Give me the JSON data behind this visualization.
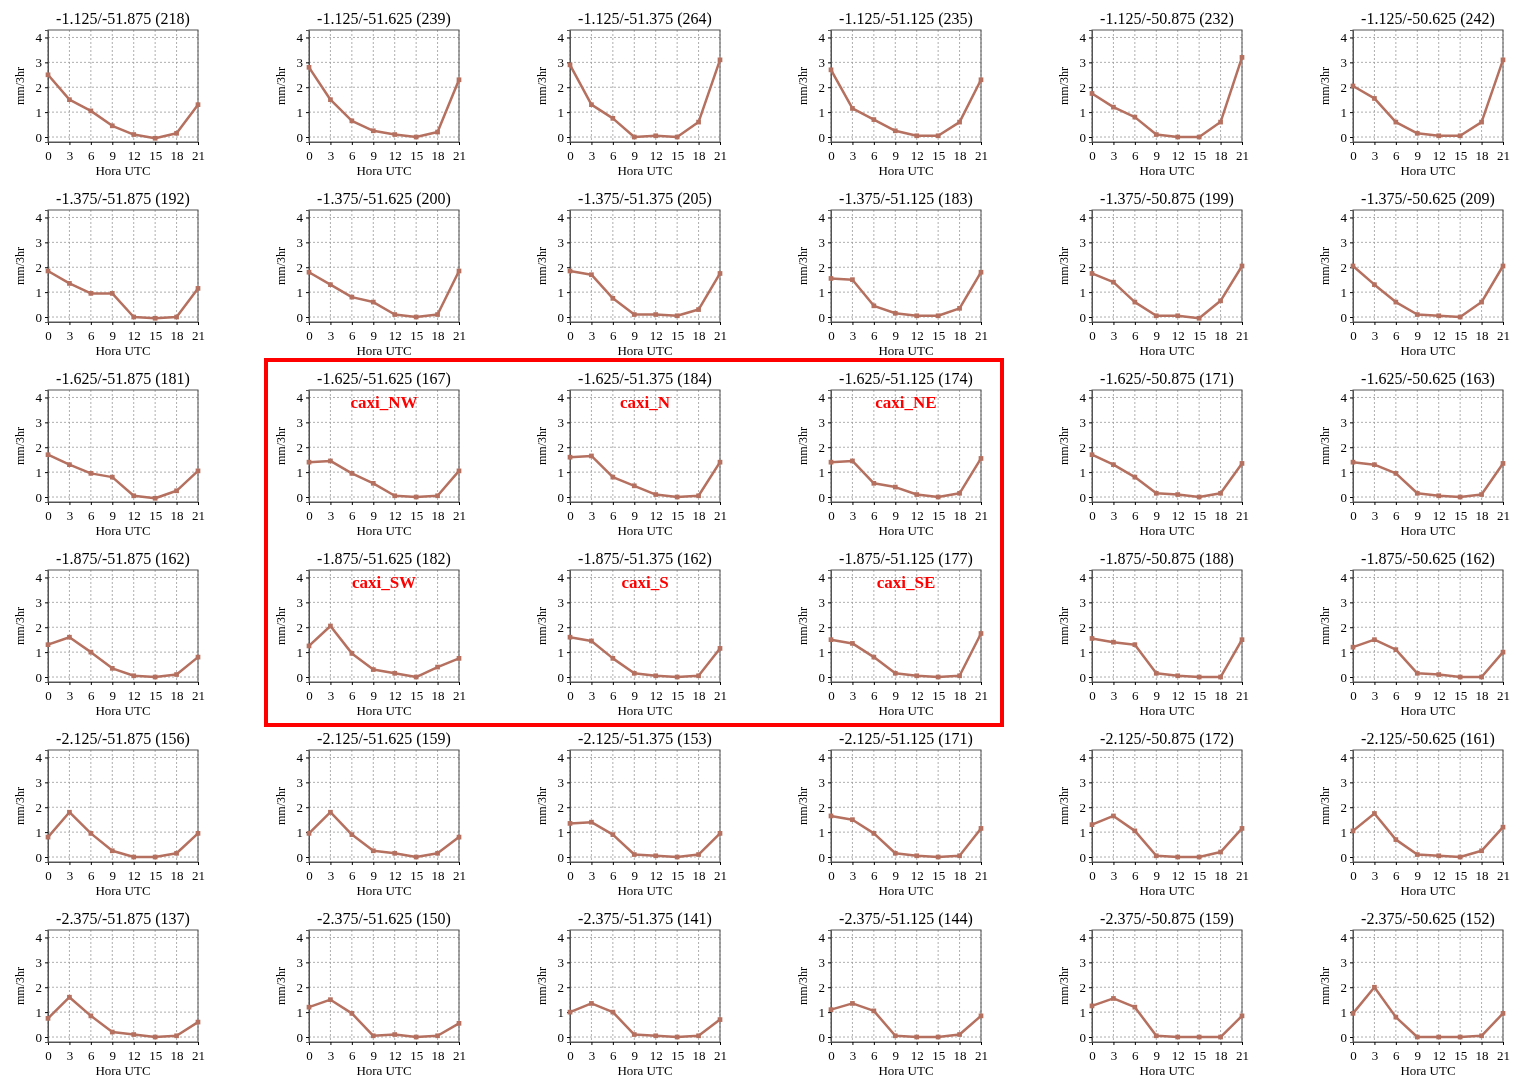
{
  "chart_data": [
    {
      "type": "line",
      "title": "-1.125/-51.875 (218)",
      "xlabel": "Hora UTC",
      "ylabel": "mm/3hr",
      "x": [
        0,
        3,
        6,
        9,
        12,
        15,
        18,
        21
      ],
      "series": [
        {
          "color": "#b5705f",
          "values": [
            2.5,
            1.5,
            1.05,
            0.45,
            0.1,
            -0.05,
            0.15,
            1.3
          ]
        }
      ],
      "xlim": [
        0,
        21
      ],
      "ylim": [
        -0.2,
        4.3
      ],
      "xticks": [
        0,
        3,
        6,
        9,
        12,
        15,
        18,
        21
      ],
      "yticks": [
        0,
        1,
        2,
        3,
        4
      ],
      "grid": true,
      "marker": "square"
    },
    {
      "type": "line",
      "title": "-1.125/-51.625 (239)",
      "xlabel": "Hora UTC",
      "ylabel": "mm/3hr",
      "x": [
        0,
        3,
        6,
        9,
        12,
        15,
        18,
        21
      ],
      "series": [
        {
          "color": "#b5705f",
          "values": [
            2.8,
            1.5,
            0.65,
            0.25,
            0.1,
            0.0,
            0.2,
            2.3
          ]
        }
      ],
      "xlim": [
        0,
        21
      ],
      "ylim": [
        -0.2,
        4.3
      ],
      "xticks": [
        0,
        3,
        6,
        9,
        12,
        15,
        18,
        21
      ],
      "yticks": [
        0,
        1,
        2,
        3,
        4
      ],
      "grid": true,
      "marker": "square"
    },
    {
      "type": "line",
      "title": "-1.125/-51.375 (264)",
      "xlabel": "Hora UTC",
      "ylabel": "mm/3hr",
      "x": [
        0,
        3,
        6,
        9,
        12,
        15,
        18,
        21
      ],
      "series": [
        {
          "color": "#b5705f",
          "values": [
            2.9,
            1.3,
            0.75,
            0.0,
            0.05,
            0.0,
            0.6,
            3.1
          ]
        }
      ],
      "xlim": [
        0,
        21
      ],
      "ylim": [
        -0.2,
        4.3
      ],
      "xticks": [
        0,
        3,
        6,
        9,
        12,
        15,
        18,
        21
      ],
      "yticks": [
        0,
        1,
        2,
        3,
        4
      ],
      "grid": true,
      "marker": "square"
    },
    {
      "type": "line",
      "title": "-1.125/-51.125 (235)",
      "xlabel": "Hora UTC",
      "ylabel": "mm/3hr",
      "x": [
        0,
        3,
        6,
        9,
        12,
        15,
        18,
        21
      ],
      "series": [
        {
          "color": "#b5705f",
          "values": [
            2.7,
            1.15,
            0.7,
            0.25,
            0.05,
            0.05,
            0.6,
            2.3
          ]
        }
      ],
      "xlim": [
        0,
        21
      ],
      "ylim": [
        -0.2,
        4.3
      ],
      "xticks": [
        0,
        3,
        6,
        9,
        12,
        15,
        18,
        21
      ],
      "yticks": [
        0,
        1,
        2,
        3,
        4
      ],
      "grid": true,
      "marker": "square"
    },
    {
      "type": "line",
      "title": "-1.125/-50.875 (232)",
      "xlabel": "Hora UTC",
      "ylabel": "mm/3hr",
      "x": [
        0,
        3,
        6,
        9,
        12,
        15,
        18,
        21
      ],
      "series": [
        {
          "color": "#b5705f",
          "values": [
            1.75,
            1.2,
            0.8,
            0.1,
            0.0,
            0.0,
            0.6,
            3.2
          ]
        }
      ],
      "xlim": [
        0,
        21
      ],
      "ylim": [
        -0.2,
        4.3
      ],
      "xticks": [
        0,
        3,
        6,
        9,
        12,
        15,
        18,
        21
      ],
      "yticks": [
        0,
        1,
        2,
        3,
        4
      ],
      "grid": true,
      "marker": "square"
    },
    {
      "type": "line",
      "title": "-1.125/-50.625 (242)",
      "xlabel": "Hora UTC",
      "ylabel": "mm/3hr",
      "x": [
        0,
        3,
        6,
        9,
        12,
        15,
        18,
        21
      ],
      "series": [
        {
          "color": "#b5705f",
          "values": [
            2.05,
            1.55,
            0.6,
            0.15,
            0.05,
            0.05,
            0.6,
            3.1
          ]
        }
      ],
      "xlim": [
        0,
        21
      ],
      "ylim": [
        -0.2,
        4.3
      ],
      "xticks": [
        0,
        3,
        6,
        9,
        12,
        15,
        18,
        21
      ],
      "yticks": [
        0,
        1,
        2,
        3,
        4
      ],
      "grid": true,
      "marker": "square"
    },
    {
      "type": "line",
      "title": "-1.375/-51.875 (192)",
      "xlabel": "Hora UTC",
      "ylabel": "mm/3hr",
      "x": [
        0,
        3,
        6,
        9,
        12,
        15,
        18,
        21
      ],
      "series": [
        {
          "color": "#b5705f",
          "values": [
            1.85,
            1.35,
            0.95,
            0.95,
            0.0,
            -0.05,
            0.0,
            1.15
          ]
        }
      ],
      "xlim": [
        0,
        21
      ],
      "ylim": [
        -0.2,
        4.3
      ],
      "xticks": [
        0,
        3,
        6,
        9,
        12,
        15,
        18,
        21
      ],
      "yticks": [
        0,
        1,
        2,
        3,
        4
      ],
      "grid": true,
      "marker": "square"
    },
    {
      "type": "line",
      "title": "-1.375/-51.625 (200)",
      "xlabel": "Hora UTC",
      "ylabel": "mm/3hr",
      "x": [
        0,
        3,
        6,
        9,
        12,
        15,
        18,
        21
      ],
      "series": [
        {
          "color": "#b5705f",
          "values": [
            1.8,
            1.3,
            0.8,
            0.6,
            0.1,
            0.0,
            0.1,
            1.85
          ]
        }
      ],
      "xlim": [
        0,
        21
      ],
      "ylim": [
        -0.2,
        4.3
      ],
      "xticks": [
        0,
        3,
        6,
        9,
        12,
        15,
        18,
        21
      ],
      "yticks": [
        0,
        1,
        2,
        3,
        4
      ],
      "grid": true,
      "marker": "square"
    },
    {
      "type": "line",
      "title": "-1.375/-51.375 (205)",
      "xlabel": "Hora UTC",
      "ylabel": "mm/3hr",
      "x": [
        0,
        3,
        6,
        9,
        12,
        15,
        18,
        21
      ],
      "series": [
        {
          "color": "#b5705f",
          "values": [
            1.85,
            1.7,
            0.75,
            0.1,
            0.1,
            0.05,
            0.3,
            1.75
          ]
        }
      ],
      "xlim": [
        0,
        21
      ],
      "ylim": [
        -0.2,
        4.3
      ],
      "xticks": [
        0,
        3,
        6,
        9,
        12,
        15,
        18,
        21
      ],
      "yticks": [
        0,
        1,
        2,
        3,
        4
      ],
      "grid": true,
      "marker": "square"
    },
    {
      "type": "line",
      "title": "-1.375/-51.125 (183)",
      "xlabel": "Hora UTC",
      "ylabel": "mm/3hr",
      "x": [
        0,
        3,
        6,
        9,
        12,
        15,
        18,
        21
      ],
      "series": [
        {
          "color": "#b5705f",
          "values": [
            1.55,
            1.5,
            0.45,
            0.15,
            0.05,
            0.05,
            0.35,
            1.8
          ]
        }
      ],
      "xlim": [
        0,
        21
      ],
      "ylim": [
        -0.2,
        4.3
      ],
      "xticks": [
        0,
        3,
        6,
        9,
        12,
        15,
        18,
        21
      ],
      "yticks": [
        0,
        1,
        2,
        3,
        4
      ],
      "grid": true,
      "marker": "square"
    },
    {
      "type": "line",
      "title": "-1.375/-50.875 (199)",
      "xlabel": "Hora UTC",
      "ylabel": "mm/3hr",
      "x": [
        0,
        3,
        6,
        9,
        12,
        15,
        18,
        21
      ],
      "series": [
        {
          "color": "#b5705f",
          "values": [
            1.75,
            1.4,
            0.6,
            0.05,
            0.05,
            -0.05,
            0.65,
            2.05
          ]
        }
      ],
      "xlim": [
        0,
        21
      ],
      "ylim": [
        -0.2,
        4.3
      ],
      "xticks": [
        0,
        3,
        6,
        9,
        12,
        15,
        18,
        21
      ],
      "yticks": [
        0,
        1,
        2,
        3,
        4
      ],
      "grid": true,
      "marker": "square"
    },
    {
      "type": "line",
      "title": "-1.375/-50.625 (209)",
      "xlabel": "Hora UTC",
      "ylabel": "mm/3hr",
      "x": [
        0,
        3,
        6,
        9,
        12,
        15,
        18,
        21
      ],
      "series": [
        {
          "color": "#b5705f",
          "values": [
            2.05,
            1.3,
            0.6,
            0.1,
            0.05,
            0.0,
            0.6,
            2.05
          ]
        }
      ],
      "xlim": [
        0,
        21
      ],
      "ylim": [
        -0.2,
        4.3
      ],
      "xticks": [
        0,
        3,
        6,
        9,
        12,
        15,
        18,
        21
      ],
      "yticks": [
        0,
        1,
        2,
        3,
        4
      ],
      "grid": true,
      "marker": "square"
    },
    {
      "type": "line",
      "title": "-1.625/-51.875 (181)",
      "xlabel": "Hora UTC",
      "ylabel": "mm/3hr",
      "x": [
        0,
        3,
        6,
        9,
        12,
        15,
        18,
        21
      ],
      "series": [
        {
          "color": "#b5705f",
          "values": [
            1.7,
            1.3,
            0.95,
            0.8,
            0.05,
            -0.05,
            0.25,
            1.05
          ]
        }
      ],
      "xlim": [
        0,
        21
      ],
      "ylim": [
        -0.2,
        4.3
      ],
      "xticks": [
        0,
        3,
        6,
        9,
        12,
        15,
        18,
        21
      ],
      "yticks": [
        0,
        1,
        2,
        3,
        4
      ],
      "grid": true,
      "marker": "square"
    },
    {
      "type": "line",
      "title": "-1.625/-51.625 (167)",
      "xlabel": "Hora UTC",
      "ylabel": "mm/3hr",
      "annotations": [
        "caxi_NW"
      ],
      "x": [
        0,
        3,
        6,
        9,
        12,
        15,
        18,
        21
      ],
      "series": [
        {
          "color": "#b5705f",
          "values": [
            1.4,
            1.45,
            0.95,
            0.55,
            0.05,
            0.0,
            0.05,
            1.05
          ]
        }
      ],
      "xlim": [
        0,
        21
      ],
      "ylim": [
        -0.2,
        4.3
      ],
      "xticks": [
        0,
        3,
        6,
        9,
        12,
        15,
        18,
        21
      ],
      "yticks": [
        0,
        1,
        2,
        3,
        4
      ],
      "grid": true,
      "marker": "square"
    },
    {
      "type": "line",
      "title": "-1.625/-51.375 (184)",
      "xlabel": "Hora UTC",
      "ylabel": "mm/3hr",
      "annotations": [
        "caxi_N"
      ],
      "x": [
        0,
        3,
        6,
        9,
        12,
        15,
        18,
        21
      ],
      "series": [
        {
          "color": "#b5705f",
          "values": [
            1.6,
            1.65,
            0.8,
            0.45,
            0.1,
            0.0,
            0.05,
            1.4
          ]
        }
      ],
      "xlim": [
        0,
        21
      ],
      "ylim": [
        -0.2,
        4.3
      ],
      "xticks": [
        0,
        3,
        6,
        9,
        12,
        15,
        18,
        21
      ],
      "yticks": [
        0,
        1,
        2,
        3,
        4
      ],
      "grid": true,
      "marker": "square"
    },
    {
      "type": "line",
      "title": "-1.625/-51.125 (174)",
      "xlabel": "Hora UTC",
      "ylabel": "mm/3hr",
      "annotations": [
        "caxi_NE"
      ],
      "x": [
        0,
        3,
        6,
        9,
        12,
        15,
        18,
        21
      ],
      "series": [
        {
          "color": "#b5705f",
          "values": [
            1.4,
            1.45,
            0.55,
            0.4,
            0.1,
            0.0,
            0.15,
            1.55
          ]
        }
      ],
      "xlim": [
        0,
        21
      ],
      "ylim": [
        -0.2,
        4.3
      ],
      "xticks": [
        0,
        3,
        6,
        9,
        12,
        15,
        18,
        21
      ],
      "yticks": [
        0,
        1,
        2,
        3,
        4
      ],
      "grid": true,
      "marker": "square"
    },
    {
      "type": "line",
      "title": "-1.625/-50.875 (171)",
      "xlabel": "Hora UTC",
      "ylabel": "mm/3hr",
      "x": [
        0,
        3,
        6,
        9,
        12,
        15,
        18,
        21
      ],
      "series": [
        {
          "color": "#b5705f",
          "values": [
            1.7,
            1.3,
            0.8,
            0.15,
            0.1,
            0.0,
            0.15,
            1.35
          ]
        }
      ],
      "xlim": [
        0,
        21
      ],
      "ylim": [
        -0.2,
        4.3
      ],
      "xticks": [
        0,
        3,
        6,
        9,
        12,
        15,
        18,
        21
      ],
      "yticks": [
        0,
        1,
        2,
        3,
        4
      ],
      "grid": true,
      "marker": "square"
    },
    {
      "type": "line",
      "title": "-1.625/-50.625 (163)",
      "xlabel": "Hora UTC",
      "ylabel": "mm/3hr",
      "x": [
        0,
        3,
        6,
        9,
        12,
        15,
        18,
        21
      ],
      "series": [
        {
          "color": "#b5705f",
          "values": [
            1.4,
            1.3,
            0.95,
            0.15,
            0.05,
            0.0,
            0.1,
            1.35
          ]
        }
      ],
      "xlim": [
        0,
        21
      ],
      "ylim": [
        -0.2,
        4.3
      ],
      "xticks": [
        0,
        3,
        6,
        9,
        12,
        15,
        18,
        21
      ],
      "yticks": [
        0,
        1,
        2,
        3,
        4
      ],
      "grid": true,
      "marker": "square"
    },
    {
      "type": "line",
      "title": "-1.875/-51.875 (162)",
      "xlabel": "Hora UTC",
      "ylabel": "mm/3hr",
      "x": [
        0,
        3,
        6,
        9,
        12,
        15,
        18,
        21
      ],
      "series": [
        {
          "color": "#b5705f",
          "values": [
            1.3,
            1.6,
            1.0,
            0.35,
            0.05,
            0.0,
            0.1,
            0.8
          ]
        }
      ],
      "xlim": [
        0,
        21
      ],
      "ylim": [
        -0.2,
        4.3
      ],
      "xticks": [
        0,
        3,
        6,
        9,
        12,
        15,
        18,
        21
      ],
      "yticks": [
        0,
        1,
        2,
        3,
        4
      ],
      "grid": true,
      "marker": "square"
    },
    {
      "type": "line",
      "title": "-1.875/-51.625 (182)",
      "xlabel": "Hora UTC",
      "ylabel": "mm/3hr",
      "annotations": [
        "caxi_SW"
      ],
      "x": [
        0,
        3,
        6,
        9,
        12,
        15,
        18,
        21
      ],
      "series": [
        {
          "color": "#b5705f",
          "values": [
            1.25,
            2.05,
            0.95,
            0.3,
            0.15,
            0.0,
            0.4,
            0.75
          ]
        }
      ],
      "xlim": [
        0,
        21
      ],
      "ylim": [
        -0.2,
        4.3
      ],
      "xticks": [
        0,
        3,
        6,
        9,
        12,
        15,
        18,
        21
      ],
      "yticks": [
        0,
        1,
        2,
        3,
        4
      ],
      "grid": true,
      "marker": "square"
    },
    {
      "type": "line",
      "title": "-1.875/-51.375 (162)",
      "xlabel": "Hora UTC",
      "ylabel": "mm/3hr",
      "annotations": [
        "caxi_S"
      ],
      "x": [
        0,
        3,
        6,
        9,
        12,
        15,
        18,
        21
      ],
      "series": [
        {
          "color": "#b5705f",
          "values": [
            1.6,
            1.45,
            0.75,
            0.15,
            0.05,
            0.0,
            0.05,
            1.15
          ]
        }
      ],
      "xlim": [
        0,
        21
      ],
      "ylim": [
        -0.2,
        4.3
      ],
      "xticks": [
        0,
        3,
        6,
        9,
        12,
        15,
        18,
        21
      ],
      "yticks": [
        0,
        1,
        2,
        3,
        4
      ],
      "grid": true,
      "marker": "square"
    },
    {
      "type": "line",
      "title": "-1.875/-51.125 (177)",
      "xlabel": "Hora UTC",
      "ylabel": "mm/3hr",
      "annotations": [
        "caxi_SE"
      ],
      "x": [
        0,
        3,
        6,
        9,
        12,
        15,
        18,
        21
      ],
      "series": [
        {
          "color": "#b5705f",
          "values": [
            1.5,
            1.35,
            0.8,
            0.15,
            0.05,
            0.0,
            0.05,
            1.75
          ]
        }
      ],
      "xlim": [
        0,
        21
      ],
      "ylim": [
        -0.2,
        4.3
      ],
      "xticks": [
        0,
        3,
        6,
        9,
        12,
        15,
        18,
        21
      ],
      "yticks": [
        0,
        1,
        2,
        3,
        4
      ],
      "grid": true,
      "marker": "square"
    },
    {
      "type": "line",
      "title": "-1.875/-50.875 (188)",
      "xlabel": "Hora UTC",
      "ylabel": "mm/3hr",
      "x": [
        0,
        3,
        6,
        9,
        12,
        15,
        18,
        21
      ],
      "series": [
        {
          "color": "#b5705f",
          "values": [
            1.55,
            1.4,
            1.3,
            0.15,
            0.05,
            0.0,
            0.0,
            1.5
          ]
        }
      ],
      "xlim": [
        0,
        21
      ],
      "ylim": [
        -0.2,
        4.3
      ],
      "xticks": [
        0,
        3,
        6,
        9,
        12,
        15,
        18,
        21
      ],
      "yticks": [
        0,
        1,
        2,
        3,
        4
      ],
      "grid": true,
      "marker": "square"
    },
    {
      "type": "line",
      "title": "-1.875/-50.625 (162)",
      "xlabel": "Hora UTC",
      "ylabel": "mm/3hr",
      "x": [
        0,
        3,
        6,
        9,
        12,
        15,
        18,
        21
      ],
      "series": [
        {
          "color": "#b5705f",
          "values": [
            1.2,
            1.5,
            1.1,
            0.15,
            0.1,
            0.0,
            0.0,
            1.0
          ]
        }
      ],
      "xlim": [
        0,
        21
      ],
      "ylim": [
        -0.2,
        4.3
      ],
      "xticks": [
        0,
        3,
        6,
        9,
        12,
        15,
        18,
        21
      ],
      "yticks": [
        0,
        1,
        2,
        3,
        4
      ],
      "grid": true,
      "marker": "square"
    },
    {
      "type": "line",
      "title": "-2.125/-51.875 (156)",
      "xlabel": "Hora UTC",
      "ylabel": "mm/3hr",
      "x": [
        0,
        3,
        6,
        9,
        12,
        15,
        18,
        21
      ],
      "series": [
        {
          "color": "#b5705f",
          "values": [
            0.8,
            1.8,
            0.95,
            0.25,
            0.0,
            0.0,
            0.15,
            0.95
          ]
        }
      ],
      "xlim": [
        0,
        21
      ],
      "ylim": [
        -0.2,
        4.3
      ],
      "xticks": [
        0,
        3,
        6,
        9,
        12,
        15,
        18,
        21
      ],
      "yticks": [
        0,
        1,
        2,
        3,
        4
      ],
      "grid": true,
      "marker": "square"
    },
    {
      "type": "line",
      "title": "-2.125/-51.625 (159)",
      "xlabel": "Hora UTC",
      "ylabel": "mm/3hr",
      "x": [
        0,
        3,
        6,
        9,
        12,
        15,
        18,
        21
      ],
      "series": [
        {
          "color": "#b5705f",
          "values": [
            0.95,
            1.8,
            0.9,
            0.25,
            0.15,
            0.0,
            0.15,
            0.8
          ]
        }
      ],
      "xlim": [
        0,
        21
      ],
      "ylim": [
        -0.2,
        4.3
      ],
      "xticks": [
        0,
        3,
        6,
        9,
        12,
        15,
        18,
        21
      ],
      "yticks": [
        0,
        1,
        2,
        3,
        4
      ],
      "grid": true,
      "marker": "square"
    },
    {
      "type": "line",
      "title": "-2.125/-51.375 (153)",
      "xlabel": "Hora UTC",
      "ylabel": "mm/3hr",
      "x": [
        0,
        3,
        6,
        9,
        12,
        15,
        18,
        21
      ],
      "series": [
        {
          "color": "#b5705f",
          "values": [
            1.35,
            1.4,
            0.9,
            0.1,
            0.05,
            0.0,
            0.1,
            0.95
          ]
        }
      ],
      "xlim": [
        0,
        21
      ],
      "ylim": [
        -0.2,
        4.3
      ],
      "xticks": [
        0,
        3,
        6,
        9,
        12,
        15,
        18,
        21
      ],
      "yticks": [
        0,
        1,
        2,
        3,
        4
      ],
      "grid": true,
      "marker": "square"
    },
    {
      "type": "line",
      "title": "-2.125/-51.125 (171)",
      "xlabel": "Hora UTC",
      "ylabel": "mm/3hr",
      "x": [
        0,
        3,
        6,
        9,
        12,
        15,
        18,
        21
      ],
      "series": [
        {
          "color": "#b5705f",
          "values": [
            1.65,
            1.5,
            0.95,
            0.15,
            0.05,
            0.0,
            0.05,
            1.15
          ]
        }
      ],
      "xlim": [
        0,
        21
      ],
      "ylim": [
        -0.2,
        4.3
      ],
      "xticks": [
        0,
        3,
        6,
        9,
        12,
        15,
        18,
        21
      ],
      "yticks": [
        0,
        1,
        2,
        3,
        4
      ],
      "grid": true,
      "marker": "square"
    },
    {
      "type": "line",
      "title": "-2.125/-50.875 (172)",
      "xlabel": "Hora UTC",
      "ylabel": "mm/3hr",
      "x": [
        0,
        3,
        6,
        9,
        12,
        15,
        18,
        21
      ],
      "series": [
        {
          "color": "#b5705f",
          "values": [
            1.3,
            1.65,
            1.05,
            0.05,
            0.0,
            0.0,
            0.2,
            1.15
          ]
        }
      ],
      "xlim": [
        0,
        21
      ],
      "ylim": [
        -0.2,
        4.3
      ],
      "xticks": [
        0,
        3,
        6,
        9,
        12,
        15,
        18,
        21
      ],
      "yticks": [
        0,
        1,
        2,
        3,
        4
      ],
      "grid": true,
      "marker": "square"
    },
    {
      "type": "line",
      "title": "-2.125/-50.625 (161)",
      "xlabel": "Hora UTC",
      "ylabel": "mm/3hr",
      "x": [
        0,
        3,
        6,
        9,
        12,
        15,
        18,
        21
      ],
      "series": [
        {
          "color": "#b5705f",
          "values": [
            1.05,
            1.75,
            0.7,
            0.1,
            0.05,
            0.0,
            0.25,
            1.2
          ]
        }
      ],
      "xlim": [
        0,
        21
      ],
      "ylim": [
        -0.2,
        4.3
      ],
      "xticks": [
        0,
        3,
        6,
        9,
        12,
        15,
        18,
        21
      ],
      "yticks": [
        0,
        1,
        2,
        3,
        4
      ],
      "grid": true,
      "marker": "square"
    },
    {
      "type": "line",
      "title": "-2.375/-51.875 (137)",
      "xlabel": "Hora UTC",
      "ylabel": "mm/3hr",
      "x": [
        0,
        3,
        6,
        9,
        12,
        15,
        18,
        21
      ],
      "series": [
        {
          "color": "#b5705f",
          "values": [
            0.75,
            1.6,
            0.85,
            0.2,
            0.1,
            0.0,
            0.05,
            0.6
          ]
        }
      ],
      "xlim": [
        0,
        21
      ],
      "ylim": [
        -0.2,
        4.3
      ],
      "xticks": [
        0,
        3,
        6,
        9,
        12,
        15,
        18,
        21
      ],
      "yticks": [
        0,
        1,
        2,
        3,
        4
      ],
      "grid": true,
      "marker": "square"
    },
    {
      "type": "line",
      "title": "-2.375/-51.625 (150)",
      "xlabel": "Hora UTC",
      "ylabel": "mm/3hr",
      "x": [
        0,
        3,
        6,
        9,
        12,
        15,
        18,
        21
      ],
      "series": [
        {
          "color": "#b5705f",
          "values": [
            1.2,
            1.5,
            0.95,
            0.05,
            0.1,
            0.0,
            0.05,
            0.55
          ]
        }
      ],
      "xlim": [
        0,
        21
      ],
      "ylim": [
        -0.2,
        4.3
      ],
      "xticks": [
        0,
        3,
        6,
        9,
        12,
        15,
        18,
        21
      ],
      "yticks": [
        0,
        1,
        2,
        3,
        4
      ],
      "grid": true,
      "marker": "square"
    },
    {
      "type": "line",
      "title": "-2.375/-51.375 (141)",
      "xlabel": "Hora UTC",
      "ylabel": "mm/3hr",
      "x": [
        0,
        3,
        6,
        9,
        12,
        15,
        18,
        21
      ],
      "series": [
        {
          "color": "#b5705f",
          "values": [
            1.0,
            1.35,
            1.0,
            0.1,
            0.05,
            0.0,
            0.05,
            0.7
          ]
        }
      ],
      "xlim": [
        0,
        21
      ],
      "ylim": [
        -0.2,
        4.3
      ],
      "xticks": [
        0,
        3,
        6,
        9,
        12,
        15,
        18,
        21
      ],
      "yticks": [
        0,
        1,
        2,
        3,
        4
      ],
      "grid": true,
      "marker": "square"
    },
    {
      "type": "line",
      "title": "-2.375/-51.125 (144)",
      "xlabel": "Hora UTC",
      "ylabel": "mm/3hr",
      "x": [
        0,
        3,
        6,
        9,
        12,
        15,
        18,
        21
      ],
      "series": [
        {
          "color": "#b5705f",
          "values": [
            1.1,
            1.35,
            1.05,
            0.05,
            0.0,
            0.0,
            0.1,
            0.85
          ]
        }
      ],
      "xlim": [
        0,
        21
      ],
      "ylim": [
        -0.2,
        4.3
      ],
      "xticks": [
        0,
        3,
        6,
        9,
        12,
        15,
        18,
        21
      ],
      "yticks": [
        0,
        1,
        2,
        3,
        4
      ],
      "grid": true,
      "marker": "square"
    },
    {
      "type": "line",
      "title": "-2.375/-50.875 (159)",
      "xlabel": "Hora UTC",
      "ylabel": "mm/3hr",
      "x": [
        0,
        3,
        6,
        9,
        12,
        15,
        18,
        21
      ],
      "series": [
        {
          "color": "#b5705f",
          "values": [
            1.25,
            1.55,
            1.2,
            0.05,
            0.0,
            0.0,
            0.0,
            0.85
          ]
        }
      ],
      "xlim": [
        0,
        21
      ],
      "ylim": [
        -0.2,
        4.3
      ],
      "xticks": [
        0,
        3,
        6,
        9,
        12,
        15,
        18,
        21
      ],
      "yticks": [
        0,
        1,
        2,
        3,
        4
      ],
      "grid": true,
      "marker": "square"
    },
    {
      "type": "line",
      "title": "-2.375/-50.625 (152)",
      "xlabel": "Hora UTC",
      "ylabel": "mm/3hr",
      "x": [
        0,
        3,
        6,
        9,
        12,
        15,
        18,
        21
      ],
      "series": [
        {
          "color": "#b5705f",
          "values": [
            0.95,
            2.0,
            0.8,
            0.0,
            0.0,
            0.0,
            0.05,
            0.95
          ]
        }
      ],
      "xlim": [
        0,
        21
      ],
      "ylim": [
        -0.2,
        4.3
      ],
      "xticks": [
        0,
        3,
        6,
        9,
        12,
        15,
        18,
        21
      ],
      "yticks": [
        0,
        1,
        2,
        3,
        4
      ],
      "grid": true,
      "marker": "square"
    }
  ]
}
